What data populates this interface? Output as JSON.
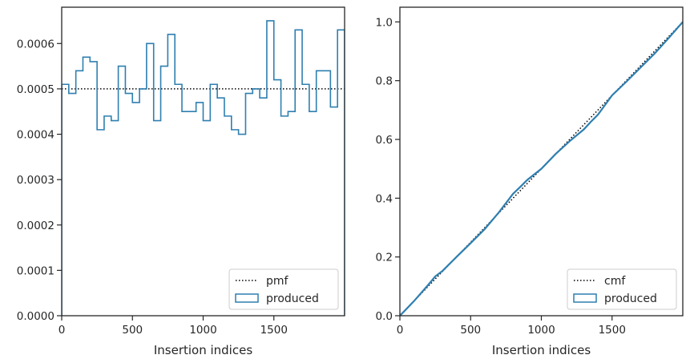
{
  "chart_data": [
    {
      "type": "line",
      "subtype": "step-histogram",
      "title": "",
      "xlabel": "Insertion indices",
      "ylabel": "",
      "xlim": [
        0,
        2000
      ],
      "ylim": [
        0,
        0.00068
      ],
      "x_ticks": [
        "0",
        "500",
        "1000",
        "1500"
      ],
      "y_ticks": [
        "0.0000",
        "0.0001",
        "0.0002",
        "0.0003",
        "0.0004",
        "0.0005",
        "0.0006"
      ],
      "x_tick_values": [
        0,
        500,
        1000,
        1500
      ],
      "y_tick_values": [
        0,
        0.0001,
        0.0002,
        0.0003,
        0.0004,
        0.0005,
        0.0006
      ],
      "grid": false,
      "legend_position": "lower-right",
      "series": [
        {
          "name": "pmf",
          "style": "dotted",
          "color": "#000000",
          "x": [
            0,
            2000
          ],
          "values": [
            0.0005,
            0.0005
          ]
        },
        {
          "name": "produced",
          "style": "step",
          "color": "#2f7fb0",
          "bin_edges": [
            0,
            50,
            100,
            150,
            200,
            250,
            300,
            350,
            400,
            450,
            500,
            550,
            600,
            650,
            700,
            750,
            800,
            850,
            900,
            950,
            1000,
            1050,
            1100,
            1150,
            1200,
            1250,
            1300,
            1350,
            1400,
            1450,
            1500,
            1550,
            1600,
            1650,
            1700,
            1750,
            1800,
            1850,
            1900,
            1950,
            2000
          ],
          "values": [
            0.00051,
            0.00049,
            0.00054,
            0.00057,
            0.00056,
            0.00041,
            0.00044,
            0.00043,
            0.00055,
            0.00049,
            0.00047,
            0.0005,
            0.0006,
            0.00043,
            0.00055,
            0.00062,
            0.00051,
            0.00045,
            0.00045,
            0.00047,
            0.00043,
            0.00051,
            0.00048,
            0.00044,
            0.00041,
            0.0004,
            0.00049,
            0.0005,
            0.00048,
            0.00065,
            0.00052,
            0.00044,
            0.00045,
            0.00063,
            0.00051,
            0.00045,
            0.00054,
            0.00054,
            0.00046,
            0.00063
          ]
        }
      ]
    },
    {
      "type": "line",
      "title": "",
      "xlabel": "Insertion indices",
      "ylabel": "",
      "xlim": [
        0,
        2000
      ],
      "ylim": [
        0,
        1.05
      ],
      "x_ticks": [
        "0",
        "500",
        "1000",
        "1500"
      ],
      "y_ticks": [
        "0.0",
        "0.2",
        "0.4",
        "0.6",
        "0.8",
        "1.0"
      ],
      "x_tick_values": [
        0,
        500,
        1000,
        1500
      ],
      "y_tick_values": [
        0,
        0.2,
        0.4,
        0.6,
        0.8,
        1.0
      ],
      "grid": false,
      "legend_position": "lower-right",
      "series": [
        {
          "name": "cmf",
          "style": "dotted",
          "color": "#000000",
          "x": [
            0,
            2000
          ],
          "values": [
            0,
            1.0
          ]
        },
        {
          "name": "produced",
          "style": "line",
          "color": "#2f7fb0",
          "x": [
            0,
            100,
            200,
            250,
            300,
            400,
            500,
            600,
            700,
            800,
            850,
            900,
            1000,
            1100,
            1200,
            1300,
            1350,
            1400,
            1500,
            1600,
            1700,
            1800,
            1900,
            2000
          ],
          "values": [
            0,
            0.05,
            0.105,
            0.134,
            0.152,
            0.2,
            0.247,
            0.295,
            0.352,
            0.415,
            0.438,
            0.462,
            0.5,
            0.55,
            0.594,
            0.634,
            0.66,
            0.684,
            0.75,
            0.796,
            0.844,
            0.892,
            0.945,
            1.0
          ]
        }
      ]
    }
  ]
}
